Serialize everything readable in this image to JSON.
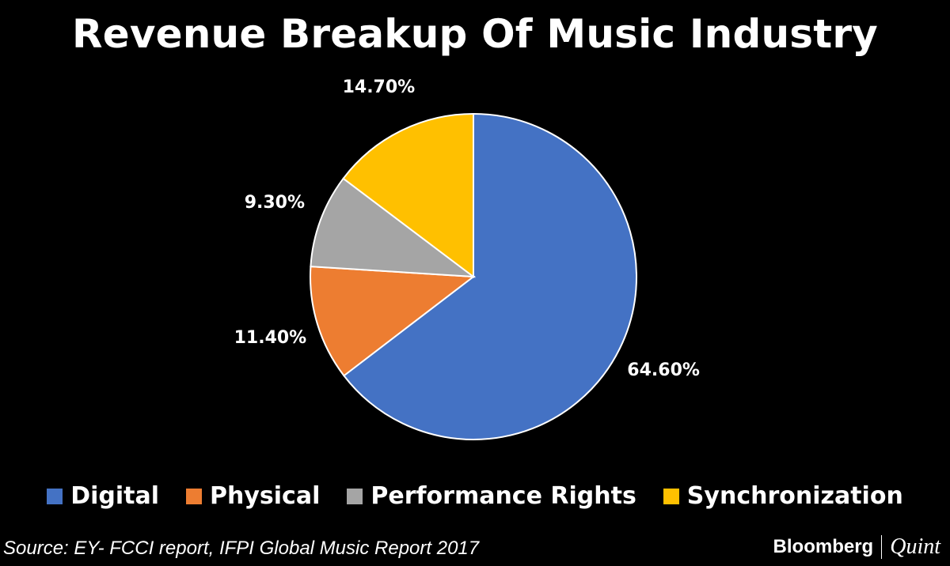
{
  "header": {
    "title": "Revenue Breakup Of Music Industry"
  },
  "chart_data": {
    "type": "pie",
    "title": "Revenue Breakup Of Music Industry",
    "start_angle_deg": 0,
    "direction": "clockwise",
    "legend_position": "bottom",
    "slices": [
      {
        "name": "Digital",
        "value": 64.6,
        "label": "64.60%",
        "color": "#4472C4"
      },
      {
        "name": "Physical",
        "value": 11.4,
        "label": "11.40%",
        "color": "#ED7D31"
      },
      {
        "name": "Performance Rights",
        "value": 9.3,
        "label": "9.30%",
        "color": "#A5A5A5"
      },
      {
        "name": "Synchronization",
        "value": 14.7,
        "label": "14.70%",
        "color": "#FFC000"
      }
    ]
  },
  "legend": {
    "items": [
      {
        "label": "Digital",
        "color": "#4472C4"
      },
      {
        "label": "Physical",
        "color": "#ED7D31"
      },
      {
        "label": "Performance Rights",
        "color": "#A5A5A5"
      },
      {
        "label": "Synchronization",
        "color": "#FFC000"
      }
    ]
  },
  "footer": {
    "source": "Source: EY- FCCI report, IFPI Global Music Report 2017",
    "brand_primary": "Bloomberg",
    "brand_secondary": "Quint"
  }
}
